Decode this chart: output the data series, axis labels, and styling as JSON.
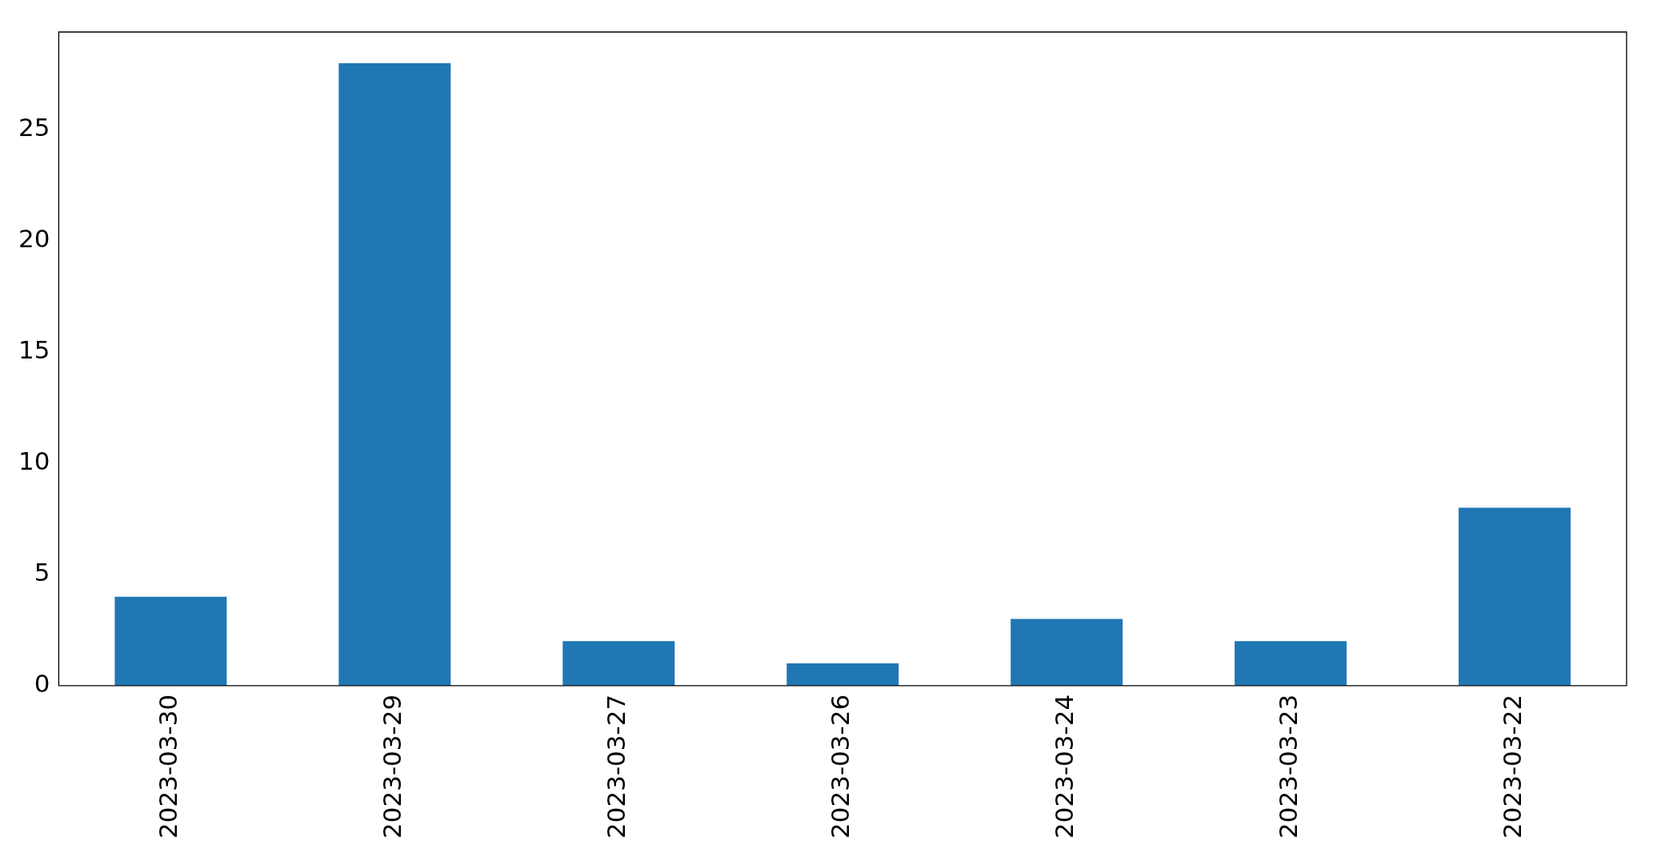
{
  "chart_data": {
    "type": "bar",
    "categories": [
      "2023-03-30",
      "2023-03-29",
      "2023-03-27",
      "2023-03-26",
      "2023-03-24",
      "2023-03-23",
      "2023-03-22"
    ],
    "values": [
      4,
      28,
      2,
      1,
      3,
      2,
      8
    ],
    "color": "#1f77b4",
    "ylim": [
      0,
      29.4
    ],
    "yticks": [
      0,
      5,
      10,
      15,
      20,
      25
    ],
    "grid": false,
    "legend": false
  }
}
